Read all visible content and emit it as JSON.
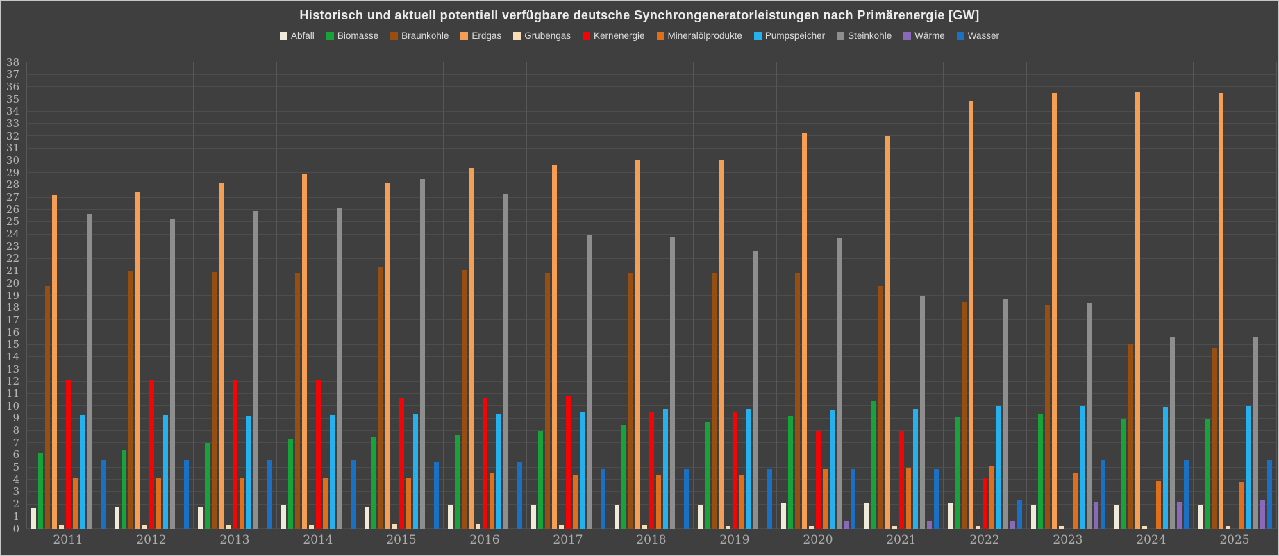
{
  "window": {
    "background": "#3f3f3f",
    "border_color": "#c6c6c6",
    "grid_color_h": "#4d4d4d",
    "grid_color_v": "#575757",
    "axis_color": "#8f8f8f",
    "title_color": "#ececec",
    "tick_color": "#b4b4b4"
  },
  "chart_data": {
    "type": "bar",
    "title": "Historisch und aktuell potentiell verfügbare deutsche Synchrongeneratorleistungen nach Primärenergie [GW]",
    "xlabel": "",
    "ylabel": "",
    "ylim": [
      0,
      38
    ],
    "ytick_step": 1,
    "grid": true,
    "legend_position": "top",
    "categories": [
      "2011",
      "2012",
      "2013",
      "2014",
      "2015",
      "2016",
      "2017",
      "2018",
      "2019",
      "2020",
      "2021",
      "2022",
      "2023",
      "2024",
      "2025"
    ],
    "series": [
      {
        "name": "Abfall",
        "color": "#f0ead8",
        "values": [
          1.7,
          1.8,
          1.8,
          1.9,
          1.8,
          1.9,
          1.9,
          1.9,
          1.9,
          2.1,
          2.1,
          2.1,
          1.9,
          2.0,
          2.0
        ]
      },
      {
        "name": "Biomasse",
        "color": "#16a339",
        "values": [
          6.2,
          6.4,
          7.0,
          7.3,
          7.5,
          7.7,
          8.0,
          8.5,
          8.7,
          9.2,
          10.4,
          9.1,
          9.4,
          9.0,
          9.0
        ]
      },
      {
        "name": "Braunkohle",
        "color": "#964f11",
        "values": [
          19.8,
          21.0,
          20.9,
          20.8,
          21.3,
          21.1,
          20.8,
          20.8,
          20.8,
          20.8,
          19.8,
          18.5,
          18.2,
          15.1,
          14.7
        ]
      },
      {
        "name": "Erdgas",
        "color": "#f49e56",
        "values": [
          27.2,
          27.4,
          28.2,
          28.9,
          28.2,
          29.4,
          29.7,
          30.0,
          30.1,
          32.3,
          32.0,
          34.9,
          35.5,
          35.6,
          35.5
        ]
      },
      {
        "name": "Grubengas",
        "color": "#f8dcb4",
        "values": [
          0.3,
          0.3,
          0.3,
          0.3,
          0.4,
          0.4,
          0.3,
          0.3,
          0.2,
          0.2,
          0.2,
          0.2,
          0.2,
          0.2,
          0.2
        ]
      },
      {
        "name": "Kernenergie",
        "color": "#f40505",
        "values": [
          12.1,
          12.1,
          12.1,
          12.1,
          10.7,
          10.7,
          10.8,
          9.5,
          9.5,
          8.0,
          8.0,
          4.1,
          0,
          0,
          0
        ]
      },
      {
        "name": "Mineralölprodukte",
        "color": "#df6f1a",
        "values": [
          4.2,
          4.1,
          4.1,
          4.2,
          4.2,
          4.5,
          4.4,
          4.4,
          4.4,
          4.9,
          5.0,
          5.1,
          4.5,
          3.9,
          3.8
        ]
      },
      {
        "name": "Pumpspeicher",
        "color": "#25b1ee",
        "values": [
          9.3,
          9.3,
          9.2,
          9.3,
          9.4,
          9.4,
          9.5,
          9.8,
          9.8,
          9.7,
          9.8,
          10.0,
          10.0,
          9.9,
          10.0
        ]
      },
      {
        "name": "Steinkohle",
        "color": "#8e8e8e",
        "values": [
          25.7,
          25.2,
          25.9,
          26.1,
          28.5,
          27.3,
          24.0,
          23.8,
          22.6,
          23.7,
          19.0,
          18.7,
          18.4,
          15.6,
          15.6
        ]
      },
      {
        "name": "Wärme",
        "color": "#8a6ab8",
        "values": [
          0,
          0,
          0,
          0,
          0,
          0,
          0,
          0,
          0,
          0.6,
          0.7,
          0.7,
          2.2,
          2.2,
          2.3
        ]
      },
      {
        "name": "Wasser",
        "color": "#1a70c2",
        "values": [
          5.6,
          5.6,
          5.6,
          5.6,
          5.5,
          5.5,
          4.9,
          4.9,
          4.9,
          4.9,
          4.9,
          2.3,
          5.6,
          5.6,
          5.6
        ]
      }
    ]
  }
}
